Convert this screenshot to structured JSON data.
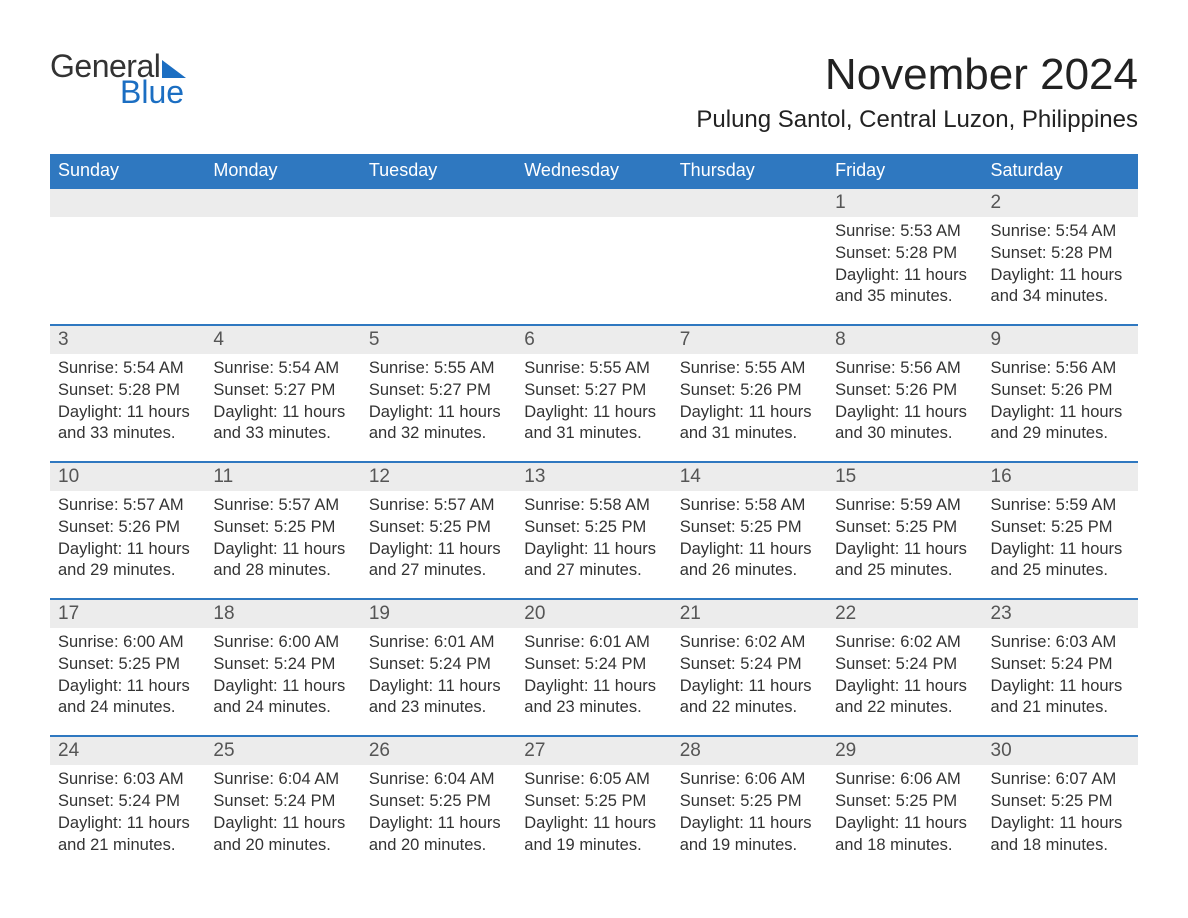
{
  "logo": {
    "word1": "General",
    "word2": "Blue"
  },
  "header": {
    "title": "November 2024",
    "location": "Pulung Santol, Central Luzon, Philippines"
  },
  "colors": {
    "brand_blue": "#1b6ec2",
    "header_blue": "#2f78c0",
    "row_gray": "#ececec",
    "text_dark": "#333333",
    "background": "#ffffff"
  },
  "calendar": {
    "columns": [
      "Sunday",
      "Monday",
      "Tuesday",
      "Wednesday",
      "Thursday",
      "Friday",
      "Saturday"
    ],
    "weeks": [
      [
        null,
        null,
        null,
        null,
        null,
        {
          "day": "1",
          "sunrise": "Sunrise: 5:53 AM",
          "sunset": "Sunset: 5:28 PM",
          "daylight1": "Daylight: 11 hours",
          "daylight2": "and 35 minutes."
        },
        {
          "day": "2",
          "sunrise": "Sunrise: 5:54 AM",
          "sunset": "Sunset: 5:28 PM",
          "daylight1": "Daylight: 11 hours",
          "daylight2": "and 34 minutes."
        }
      ],
      [
        {
          "day": "3",
          "sunrise": "Sunrise: 5:54 AM",
          "sunset": "Sunset: 5:28 PM",
          "daylight1": "Daylight: 11 hours",
          "daylight2": "and 33 minutes."
        },
        {
          "day": "4",
          "sunrise": "Sunrise: 5:54 AM",
          "sunset": "Sunset: 5:27 PM",
          "daylight1": "Daylight: 11 hours",
          "daylight2": "and 33 minutes."
        },
        {
          "day": "5",
          "sunrise": "Sunrise: 5:55 AM",
          "sunset": "Sunset: 5:27 PM",
          "daylight1": "Daylight: 11 hours",
          "daylight2": "and 32 minutes."
        },
        {
          "day": "6",
          "sunrise": "Sunrise: 5:55 AM",
          "sunset": "Sunset: 5:27 PM",
          "daylight1": "Daylight: 11 hours",
          "daylight2": "and 31 minutes."
        },
        {
          "day": "7",
          "sunrise": "Sunrise: 5:55 AM",
          "sunset": "Sunset: 5:26 PM",
          "daylight1": "Daylight: 11 hours",
          "daylight2": "and 31 minutes."
        },
        {
          "day": "8",
          "sunrise": "Sunrise: 5:56 AM",
          "sunset": "Sunset: 5:26 PM",
          "daylight1": "Daylight: 11 hours",
          "daylight2": "and 30 minutes."
        },
        {
          "day": "9",
          "sunrise": "Sunrise: 5:56 AM",
          "sunset": "Sunset: 5:26 PM",
          "daylight1": "Daylight: 11 hours",
          "daylight2": "and 29 minutes."
        }
      ],
      [
        {
          "day": "10",
          "sunrise": "Sunrise: 5:57 AM",
          "sunset": "Sunset: 5:26 PM",
          "daylight1": "Daylight: 11 hours",
          "daylight2": "and 29 minutes."
        },
        {
          "day": "11",
          "sunrise": "Sunrise: 5:57 AM",
          "sunset": "Sunset: 5:25 PM",
          "daylight1": "Daylight: 11 hours",
          "daylight2": "and 28 minutes."
        },
        {
          "day": "12",
          "sunrise": "Sunrise: 5:57 AM",
          "sunset": "Sunset: 5:25 PM",
          "daylight1": "Daylight: 11 hours",
          "daylight2": "and 27 minutes."
        },
        {
          "day": "13",
          "sunrise": "Sunrise: 5:58 AM",
          "sunset": "Sunset: 5:25 PM",
          "daylight1": "Daylight: 11 hours",
          "daylight2": "and 27 minutes."
        },
        {
          "day": "14",
          "sunrise": "Sunrise: 5:58 AM",
          "sunset": "Sunset: 5:25 PM",
          "daylight1": "Daylight: 11 hours",
          "daylight2": "and 26 minutes."
        },
        {
          "day": "15",
          "sunrise": "Sunrise: 5:59 AM",
          "sunset": "Sunset: 5:25 PM",
          "daylight1": "Daylight: 11 hours",
          "daylight2": "and 25 minutes."
        },
        {
          "day": "16",
          "sunrise": "Sunrise: 5:59 AM",
          "sunset": "Sunset: 5:25 PM",
          "daylight1": "Daylight: 11 hours",
          "daylight2": "and 25 minutes."
        }
      ],
      [
        {
          "day": "17",
          "sunrise": "Sunrise: 6:00 AM",
          "sunset": "Sunset: 5:25 PM",
          "daylight1": "Daylight: 11 hours",
          "daylight2": "and 24 minutes."
        },
        {
          "day": "18",
          "sunrise": "Sunrise: 6:00 AM",
          "sunset": "Sunset: 5:24 PM",
          "daylight1": "Daylight: 11 hours",
          "daylight2": "and 24 minutes."
        },
        {
          "day": "19",
          "sunrise": "Sunrise: 6:01 AM",
          "sunset": "Sunset: 5:24 PM",
          "daylight1": "Daylight: 11 hours",
          "daylight2": "and 23 minutes."
        },
        {
          "day": "20",
          "sunrise": "Sunrise: 6:01 AM",
          "sunset": "Sunset: 5:24 PM",
          "daylight1": "Daylight: 11 hours",
          "daylight2": "and 23 minutes."
        },
        {
          "day": "21",
          "sunrise": "Sunrise: 6:02 AM",
          "sunset": "Sunset: 5:24 PM",
          "daylight1": "Daylight: 11 hours",
          "daylight2": "and 22 minutes."
        },
        {
          "day": "22",
          "sunrise": "Sunrise: 6:02 AM",
          "sunset": "Sunset: 5:24 PM",
          "daylight1": "Daylight: 11 hours",
          "daylight2": "and 22 minutes."
        },
        {
          "day": "23",
          "sunrise": "Sunrise: 6:03 AM",
          "sunset": "Sunset: 5:24 PM",
          "daylight1": "Daylight: 11 hours",
          "daylight2": "and 21 minutes."
        }
      ],
      [
        {
          "day": "24",
          "sunrise": "Sunrise: 6:03 AM",
          "sunset": "Sunset: 5:24 PM",
          "daylight1": "Daylight: 11 hours",
          "daylight2": "and 21 minutes."
        },
        {
          "day": "25",
          "sunrise": "Sunrise: 6:04 AM",
          "sunset": "Sunset: 5:24 PM",
          "daylight1": "Daylight: 11 hours",
          "daylight2": "and 20 minutes."
        },
        {
          "day": "26",
          "sunrise": "Sunrise: 6:04 AM",
          "sunset": "Sunset: 5:25 PM",
          "daylight1": "Daylight: 11 hours",
          "daylight2": "and 20 minutes."
        },
        {
          "day": "27",
          "sunrise": "Sunrise: 6:05 AM",
          "sunset": "Sunset: 5:25 PM",
          "daylight1": "Daylight: 11 hours",
          "daylight2": "and 19 minutes."
        },
        {
          "day": "28",
          "sunrise": "Sunrise: 6:06 AM",
          "sunset": "Sunset: 5:25 PM",
          "daylight1": "Daylight: 11 hours",
          "daylight2": "and 19 minutes."
        },
        {
          "day": "29",
          "sunrise": "Sunrise: 6:06 AM",
          "sunset": "Sunset: 5:25 PM",
          "daylight1": "Daylight: 11 hours",
          "daylight2": "and 18 minutes."
        },
        {
          "day": "30",
          "sunrise": "Sunrise: 6:07 AM",
          "sunset": "Sunset: 5:25 PM",
          "daylight1": "Daylight: 11 hours",
          "daylight2": "and 18 minutes."
        }
      ]
    ]
  }
}
